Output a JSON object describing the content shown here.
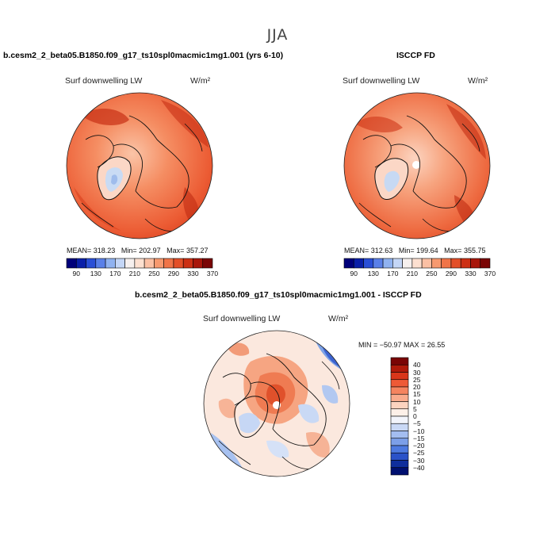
{
  "season": "JJA",
  "panels": [
    {
      "title": "b.cesm2_2_beta05.B1850.f09_g17_ts10spl0macmic1mg1.001 (yrs 6-10)",
      "field": "Surf downwelling LW",
      "units": "W/m²",
      "stats": {
        "mean_label": "MEAN=",
        "mean": "318.23",
        "min_label": "Min=",
        "min": "202.97",
        "max_label": "Max=",
        "max": "357.27"
      }
    },
    {
      "title": "ISCCP FD",
      "field": "Surf downwelling LW",
      "units": "W/m²",
      "stats": {
        "mean_label": "MEAN=",
        "mean": "312.63",
        "min_label": "Min=",
        "min": "199.64",
        "max_label": "Max=",
        "max": "355.75"
      }
    }
  ],
  "diff_panel": {
    "title": "b.cesm2_2_beta05.B1850.f09_g17_ts10spl0macmic1mg1.001 - ISCCP FD",
    "field": "Surf downwelling LW",
    "units": "W/m²",
    "stats_text": "MIN = −50.97 MAX =  26.55"
  },
  "colorbar_abs": {
    "labels": [
      "90",
      "130",
      "170",
      "210",
      "250",
      "290",
      "330",
      "370"
    ],
    "colors": [
      "#00007a",
      "#0a1fa8",
      "#2a4fd6",
      "#5a80e8",
      "#90b2f0",
      "#c4d6f6",
      "#f6f0ee",
      "#fde0d0",
      "#fbc0a4",
      "#f7996f",
      "#f07448",
      "#e34f28",
      "#cc3014",
      "#a8160a",
      "#7a0505"
    ]
  },
  "colorbar_diff": {
    "labels": [
      "40",
      "30",
      "25",
      "20",
      "15",
      "10",
      "5",
      "0",
      "−5",
      "−10",
      "−15",
      "−20",
      "−25",
      "−30",
      "−40"
    ],
    "colors": [
      "#7a0505",
      "#b01a0a",
      "#d9361a",
      "#ee5a36",
      "#f5845f",
      "#f9ab8c",
      "#fcd3bf",
      "#fdf0e8",
      "#f2f4fb",
      "#c9d8f5",
      "#a3bdf0",
      "#7c9fe8",
      "#4e7ae0",
      "#2a52c8",
      "#0f2e9c",
      "#001070"
    ]
  }
}
